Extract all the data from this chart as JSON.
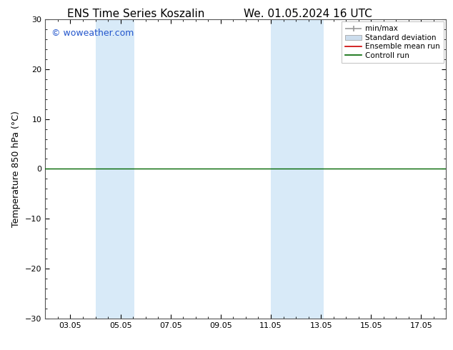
{
  "title_left": "ENS Time Series Koszalin",
  "title_right": "We. 01.05.2024 16 UTC",
  "ylabel": "Temperature 850 hPa (°C)",
  "ylim": [
    -30,
    30
  ],
  "yticks": [
    -30,
    -20,
    -10,
    0,
    10,
    20,
    30
  ],
  "xtick_labels": [
    "03.05",
    "05.05",
    "07.05",
    "09.05",
    "11.05",
    "13.05",
    "15.05",
    "17.05"
  ],
  "xtick_positions": [
    3,
    5,
    7,
    9,
    11,
    13,
    15,
    17
  ],
  "xlim": [
    2.0,
    18.0
  ],
  "background_color": "#ffffff",
  "plot_bg_color": "#ffffff",
  "watermark": "© woweather.com",
  "watermark_color": "#2255cc",
  "shaded_regions": [
    {
      "xmin": 4.0,
      "xmax": 5.55,
      "color": "#d8eaf8"
    },
    {
      "xmin": 11.0,
      "xmax": 13.1,
      "color": "#d8eaf8"
    }
  ],
  "control_run_y": 0.0,
  "control_run_color": "#006600",
  "control_run_lw": 1.0,
  "ensemble_mean_color": "#cc0000",
  "minmax_color": "#999999",
  "std_dev_color": "#ccdded",
  "legend_entries": [
    "min/max",
    "Standard deviation",
    "Ensemble mean run",
    "Controll run"
  ],
  "spine_color": "#555555",
  "title_fontsize": 11,
  "ylabel_fontsize": 9,
  "tick_fontsize": 8,
  "watermark_fontsize": 9,
  "legend_fontsize": 7.5
}
